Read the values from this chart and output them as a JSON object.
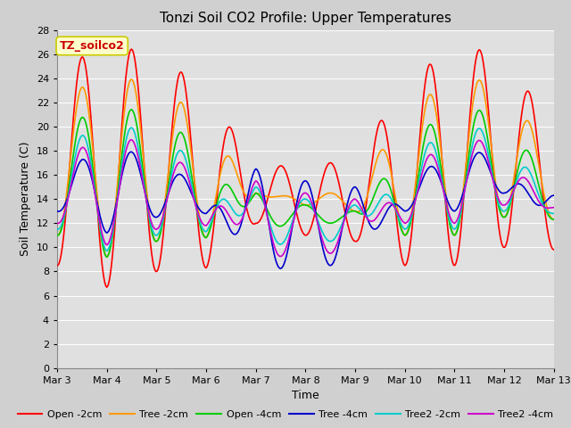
{
  "title": "Tonzi Soil CO2 Profile: Upper Temperatures",
  "xlabel": "Time",
  "ylabel": "Soil Temperature (C)",
  "ylim": [
    0,
    28
  ],
  "yticks": [
    0,
    2,
    4,
    6,
    8,
    10,
    12,
    14,
    16,
    18,
    20,
    22,
    24,
    26,
    28
  ],
  "xtick_labels": [
    "Mar 3",
    "Mar 4",
    "Mar 5",
    "Mar 6",
    "Mar 7",
    "Mar 8",
    "Mar 9",
    "Mar 10",
    "Mar 11",
    "Mar 12",
    "Mar 13"
  ],
  "xtick_positions": [
    3,
    4,
    5,
    6,
    7,
    8,
    9,
    10,
    11,
    12,
    13
  ],
  "series": [
    {
      "label": "Open -2cm",
      "color": "#ff0000",
      "lw": 1.2
    },
    {
      "label": "Tree -2cm",
      "color": "#ff9900",
      "lw": 1.2
    },
    {
      "label": "Open -4cm",
      "color": "#00cc00",
      "lw": 1.2
    },
    {
      "label": "Tree -4cm",
      "color": "#0000cc",
      "lw": 1.2
    },
    {
      "label": "Tree2 -2cm",
      "color": "#00cccc",
      "lw": 1.2
    },
    {
      "label": "Tree2 -4cm",
      "color": "#cc00cc",
      "lw": 1.2
    }
  ],
  "watermark_label": "TZ_soilco2",
  "watermark_color": "#cc0000",
  "watermark_bg": "#ffffcc",
  "watermark_edgecolor": "#cccc00",
  "plot_bg": "#e0e0e0",
  "fig_bg": "#d0d0d0",
  "title_fontsize": 11,
  "axis_fontsize": 9,
  "tick_fontsize": 8,
  "legend_fontsize": 8,
  "open2_peaks": [
    24.5,
    27.0,
    25.8,
    23.2,
    16.5,
    17.0,
    17.0,
    23.8,
    26.5,
    26.2,
    19.5
  ],
  "open2_troughs": [
    8.5,
    6.7,
    8.0,
    8.3,
    12.0,
    11.0,
    10.5,
    8.5,
    8.5,
    10.0,
    9.8
  ],
  "peak_hour": 0.58,
  "trough_hour": 0.25
}
